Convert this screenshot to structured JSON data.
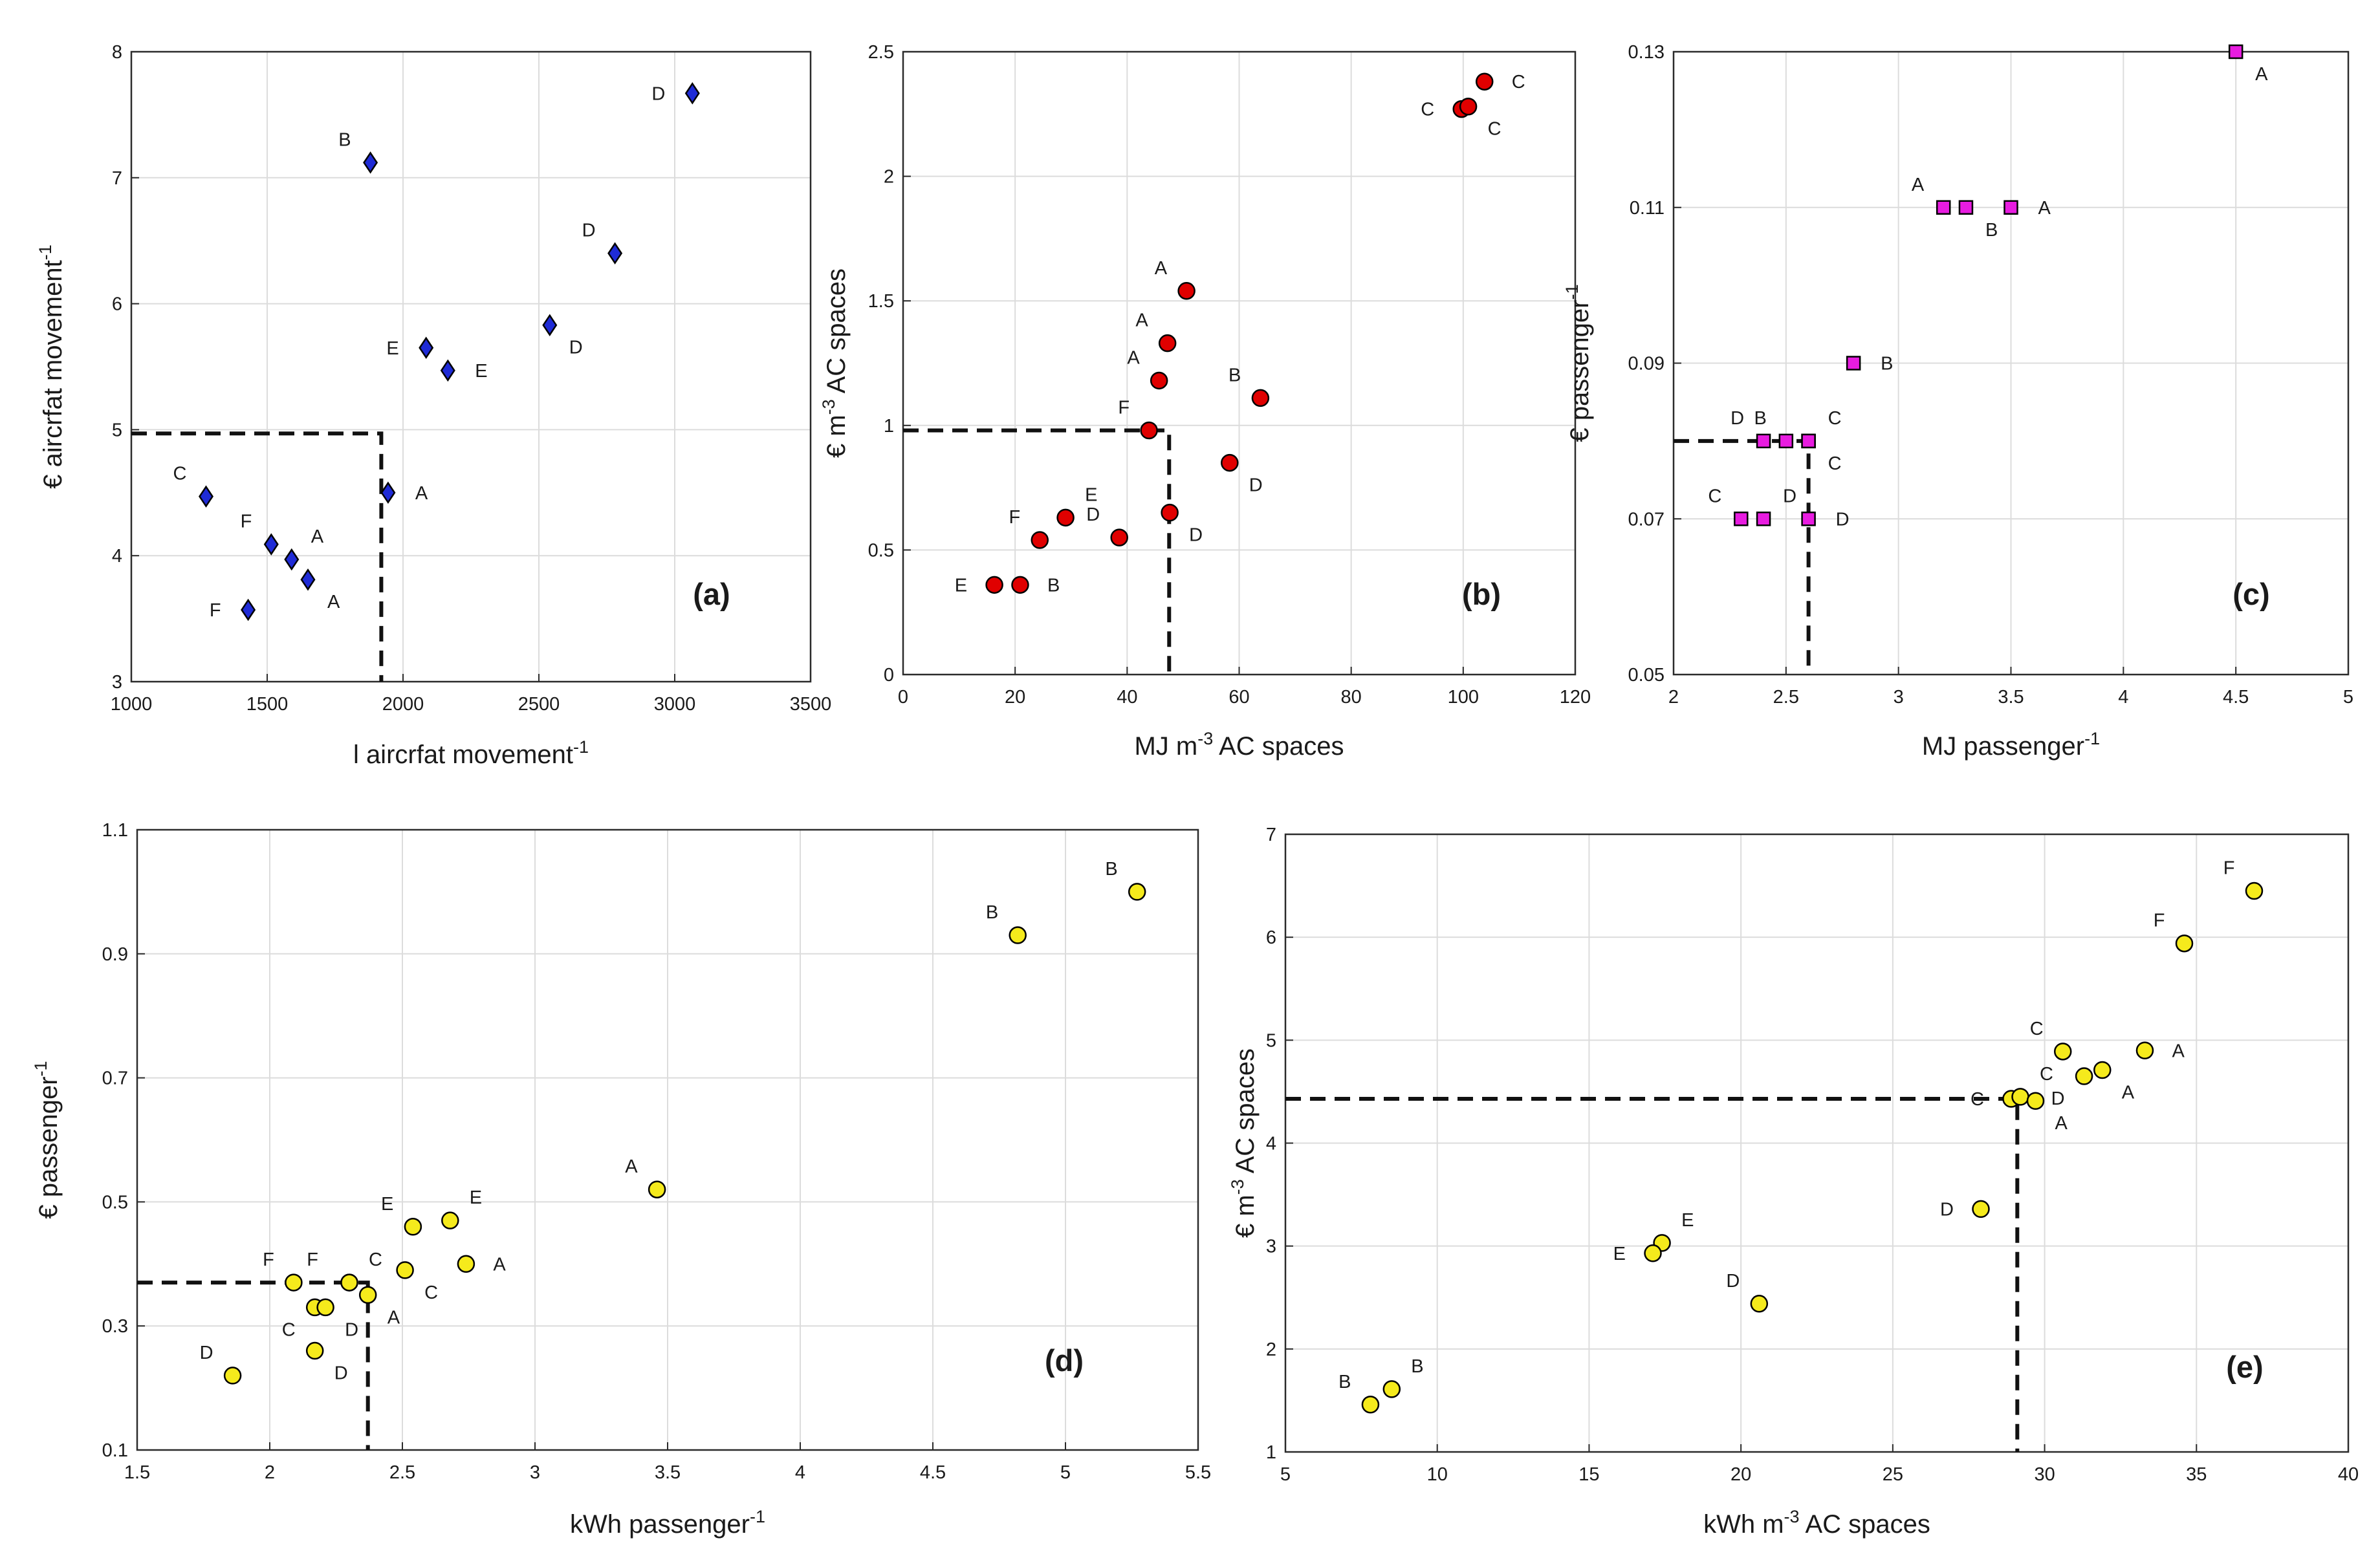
{
  "chart_data": [
    {
      "id": "a",
      "type": "scatter",
      "panel_label": "(a)",
      "xlabel": "l aircrfat movement",
      "xlabel_sup": "-1",
      "ylabel": "€ aircrfat movement",
      "ylabel_sup": "-1",
      "xlim": [
        1000,
        3500
      ],
      "ylim": [
        3,
        8
      ],
      "xticks": [
        1000,
        1500,
        2000,
        2500,
        3000,
        3500
      ],
      "xtick_labels": [
        "1000",
        "1500",
        "2000",
        "2500",
        "3000",
        "3500"
      ],
      "yticks": [
        3,
        4,
        5,
        6,
        7,
        8
      ],
      "ytick_labels": [
        "3",
        "4",
        "5",
        "6",
        "7",
        "8"
      ],
      "marker": "diamond",
      "color": "#1f2bd6",
      "reference": {
        "x": 1920,
        "y": 4.97
      },
      "points": [
        {
          "x": 3065,
          "y": 7.67,
          "label": "D",
          "label_pos": "left"
        },
        {
          "x": 1880,
          "y": 7.12,
          "label": "B",
          "label_pos": "upper-left"
        },
        {
          "x": 2780,
          "y": 6.4,
          "label": "D",
          "label_pos": "upper-left"
        },
        {
          "x": 2540,
          "y": 5.83,
          "label": "D",
          "label_pos": "lower-right"
        },
        {
          "x": 2085,
          "y": 5.65,
          "label": "E",
          "label_pos": "left"
        },
        {
          "x": 2165,
          "y": 5.47,
          "label": "E",
          "label_pos": "right"
        },
        {
          "x": 1945,
          "y": 4.5,
          "label": "A",
          "label_pos": "right"
        },
        {
          "x": 1275,
          "y": 4.47,
          "label": "C",
          "label_pos": "upper-left"
        },
        {
          "x": 1515,
          "y": 4.09,
          "label": "F",
          "label_pos": "upper-left"
        },
        {
          "x": 1590,
          "y": 3.97,
          "label": "A",
          "label_pos": "upper-right"
        },
        {
          "x": 1650,
          "y": 3.81,
          "label": "A",
          "label_pos": "lower-right"
        },
        {
          "x": 1430,
          "y": 3.57,
          "label": "F",
          "label_pos": "left"
        }
      ]
    },
    {
      "id": "b",
      "type": "scatter",
      "panel_label": "(b)",
      "xlabel": "MJ m",
      "xlabel_sup": "-3",
      "xlabel_rest": " AC spaces",
      "ylabel": "€ m",
      "ylabel_sup": "-3",
      "ylabel_rest": " AC spaces",
      "xlim": [
        0,
        120
      ],
      "ylim": [
        0,
        2.5
      ],
      "xticks": [
        0,
        20,
        40,
        60,
        80,
        100,
        120
      ],
      "xtick_labels": [
        "0",
        "20",
        "40",
        "60",
        "80",
        "100",
        "120"
      ],
      "yticks": [
        0,
        0.5,
        1,
        1.5,
        2,
        2.5
      ],
      "ytick_labels": [
        "0",
        "0.5",
        "1",
        "1.5",
        "2",
        "2.5"
      ],
      "marker": "circle",
      "color": "#e00000",
      "reference": {
        "x": 47.5,
        "y": 0.98
      },
      "points": [
        {
          "x": 103.8,
          "y": 2.38,
          "label": "C",
          "label_pos": "right"
        },
        {
          "x": 99.7,
          "y": 2.27,
          "label": "C",
          "label_pos": "left"
        },
        {
          "x": 100.9,
          "y": 2.28,
          "label": "C",
          "label_pos": "lower-right"
        },
        {
          "x": 50.6,
          "y": 1.54,
          "label": "A",
          "label_pos": "upper-left"
        },
        {
          "x": 47.2,
          "y": 1.33,
          "label": "A",
          "label_pos": "upper-left"
        },
        {
          "x": 45.7,
          "y": 1.18,
          "label": "A",
          "label_pos": "upper-left"
        },
        {
          "x": 63.8,
          "y": 1.11,
          "label": "B",
          "label_pos": "upper-left"
        },
        {
          "x": 43.9,
          "y": 0.98,
          "label": "F",
          "label_pos": "upper-left"
        },
        {
          "x": 58.3,
          "y": 0.85,
          "label": "D",
          "label_pos": "lower-right"
        },
        {
          "x": 29.0,
          "y": 0.63,
          "label": "E",
          "label_pos": "upper-right"
        },
        {
          "x": 47.6,
          "y": 0.65,
          "label": "D",
          "label_pos": "lower-right"
        },
        {
          "x": 38.6,
          "y": 0.55,
          "label": "D",
          "label_pos": "upper-left"
        },
        {
          "x": 24.4,
          "y": 0.54,
          "label": "F",
          "label_pos": "upper-left"
        },
        {
          "x": 16.3,
          "y": 0.36,
          "label": "E",
          "label_pos": "left"
        },
        {
          "x": 20.9,
          "y": 0.36,
          "label": "B",
          "label_pos": "right"
        }
      ]
    },
    {
      "id": "c",
      "type": "scatter",
      "panel_label": "(c)",
      "xlabel": "MJ passenger",
      "xlabel_sup": "-1",
      "ylabel": "€ passenger",
      "ylabel_sup": "-1",
      "xlim": [
        2,
        5
      ],
      "ylim": [
        0.05,
        0.13
      ],
      "xticks": [
        2,
        2.5,
        3,
        3.5,
        4,
        4.5,
        5
      ],
      "xtick_labels": [
        "2",
        "2.5",
        "3",
        "3.5",
        "4",
        "4.5",
        "5"
      ],
      "yticks": [
        0.05,
        0.07,
        0.09,
        0.11,
        0.13
      ],
      "ytick_labels": [
        "0.05",
        "0.07",
        "0.09",
        "0.11",
        "0.13"
      ],
      "marker": "square",
      "color": "#e81ce0",
      "reference": {
        "x": 2.6,
        "y": 0.08
      },
      "points": [
        {
          "x": 4.5,
          "y": 0.13,
          "label": "A",
          "label_pos": "lower-right"
        },
        {
          "x": 3.2,
          "y": 0.11,
          "label": "A",
          "label_pos": "upper-left"
        },
        {
          "x": 3.3,
          "y": 0.11,
          "label": "B",
          "label_pos": "lower-right"
        },
        {
          "x": 3.5,
          "y": 0.11,
          "label": "A",
          "label_pos": "right"
        },
        {
          "x": 2.8,
          "y": 0.09,
          "label": "B",
          "label_pos": "right"
        },
        {
          "x": 2.4,
          "y": 0.08,
          "label": "D",
          "label_pos": "upper-left"
        },
        {
          "x": 2.5,
          "y": 0.08,
          "label": "B",
          "label_pos": "upper-left"
        },
        {
          "x": 2.6,
          "y": 0.08,
          "label": "C",
          "label_pos": "upper-right"
        },
        {
          "x": 2.6,
          "y": 0.08,
          "label": "C",
          "label_pos": "lower-right"
        },
        {
          "x": 2.3,
          "y": 0.07,
          "label": "C",
          "label_pos": "upper-left"
        },
        {
          "x": 2.4,
          "y": 0.07,
          "label": "D",
          "label_pos": "upper-right"
        },
        {
          "x": 2.6,
          "y": 0.07,
          "label": "D",
          "label_pos": "right"
        }
      ]
    },
    {
      "id": "d",
      "type": "scatter",
      "panel_label": "(d)",
      "xlabel": "kWh passenger",
      "xlabel_sup": "-1",
      "ylabel": "€ passenger",
      "ylabel_sup": "-1",
      "xlim": [
        1.5,
        5.5
      ],
      "ylim": [
        0.1,
        1.1
      ],
      "xticks": [
        1.5,
        2,
        2.5,
        3,
        3.5,
        4,
        4.5,
        5,
        5.5
      ],
      "xtick_labels": [
        "1.5",
        "2",
        "2.5",
        "3",
        "3.5",
        "4",
        "4.5",
        "5",
        "5.5"
      ],
      "yticks": [
        0.1,
        0.3,
        0.5,
        0.7,
        0.9,
        1.1
      ],
      "ytick_labels": [
        "0.1",
        "0.3",
        "0.5",
        "0.7",
        "0.9",
        "1.1"
      ],
      "marker": "circle",
      "color": "#f5ea1c",
      "reference": {
        "x": 2.37,
        "y": 0.37
      },
      "points": [
        {
          "x": 5.27,
          "y": 1.0,
          "label": "B",
          "label_pos": "upper-left"
        },
        {
          "x": 4.82,
          "y": 0.93,
          "label": "B",
          "label_pos": "upper-left"
        },
        {
          "x": 3.46,
          "y": 0.52,
          "label": "A",
          "label_pos": "upper-left"
        },
        {
          "x": 2.54,
          "y": 0.46,
          "label": "E",
          "label_pos": "upper-left"
        },
        {
          "x": 2.68,
          "y": 0.47,
          "label": "E",
          "label_pos": "upper-right"
        },
        {
          "x": 2.74,
          "y": 0.4,
          "label": "A",
          "label_pos": "right"
        },
        {
          "x": 2.51,
          "y": 0.39,
          "label": "C",
          "label_pos": "lower-right"
        },
        {
          "x": 2.09,
          "y": 0.37,
          "label": "F",
          "label_pos": "upper-left"
        },
        {
          "x": 2.3,
          "y": 0.37,
          "label": "F",
          "label_pos": "far-upper-left"
        },
        {
          "x": 2.3,
          "y": 0.37,
          "label": "C",
          "label_pos": "upper-right"
        },
        {
          "x": 2.37,
          "y": 0.35,
          "label": "A",
          "label_pos": "lower-right"
        },
        {
          "x": 2.17,
          "y": 0.33,
          "label": "C",
          "label_pos": "lower-left"
        },
        {
          "x": 2.21,
          "y": 0.33,
          "label": "D",
          "label_pos": "lower-right"
        },
        {
          "x": 2.17,
          "y": 0.26,
          "label": "D",
          "label_pos": "lower-right"
        },
        {
          "x": 1.86,
          "y": 0.22,
          "label": "D",
          "label_pos": "upper-left"
        }
      ]
    },
    {
      "id": "e",
      "type": "scatter",
      "panel_label": "(e)",
      "xlabel": "kWh m",
      "xlabel_sup": "-3",
      "xlabel_rest": " AC spaces",
      "ylabel": "€ m",
      "ylabel_sup": "-3",
      "ylabel_rest": " AC spaces",
      "xlim": [
        5,
        40
      ],
      "ylim": [
        1,
        7
      ],
      "xticks": [
        5,
        10,
        15,
        20,
        25,
        30,
        35,
        40
      ],
      "xtick_labels": [
        "5",
        "10",
        "15",
        "20",
        "25",
        "30",
        "35",
        "40"
      ],
      "yticks": [
        1,
        2,
        3,
        4,
        5,
        6,
        7
      ],
      "ytick_labels": [
        "1",
        "2",
        "3",
        "4",
        "5",
        "6",
        "7"
      ],
      "marker": "circle",
      "color": "#f5ea1c",
      "reference": {
        "x": 29.1,
        "y": 4.43
      },
      "points": [
        {
          "x": 36.9,
          "y": 6.45,
          "label": "F",
          "label_pos": "upper-left"
        },
        {
          "x": 34.6,
          "y": 5.94,
          "label": "F",
          "label_pos": "upper-left"
        },
        {
          "x": 30.6,
          "y": 4.89,
          "label": "C",
          "label_pos": "upper-left"
        },
        {
          "x": 33.3,
          "y": 4.9,
          "label": "A",
          "label_pos": "right"
        },
        {
          "x": 31.9,
          "y": 4.71,
          "label": "A",
          "label_pos": "lower-right"
        },
        {
          "x": 31.3,
          "y": 4.65,
          "label": "D",
          "label_pos": "lower-left"
        },
        {
          "x": 28.9,
          "y": 4.43,
          "label": "C",
          "label_pos": "left"
        },
        {
          "x": 29.2,
          "y": 4.45,
          "label": "C",
          "label_pos": "upper-right"
        },
        {
          "x": 29.7,
          "y": 4.41,
          "label": "A",
          "label_pos": "lower-right"
        },
        {
          "x": 27.9,
          "y": 3.36,
          "label": "D",
          "label_pos": "left"
        },
        {
          "x": 17.4,
          "y": 3.03,
          "label": "E",
          "label_pos": "upper-right"
        },
        {
          "x": 17.1,
          "y": 2.93,
          "label": "E",
          "label_pos": "left"
        },
        {
          "x": 20.6,
          "y": 2.44,
          "label": "D",
          "label_pos": "upper-left"
        },
        {
          "x": 8.5,
          "y": 1.61,
          "label": "B",
          "label_pos": "upper-right"
        },
        {
          "x": 7.8,
          "y": 1.46,
          "label": "B",
          "label_pos": "upper-left"
        }
      ]
    }
  ]
}
